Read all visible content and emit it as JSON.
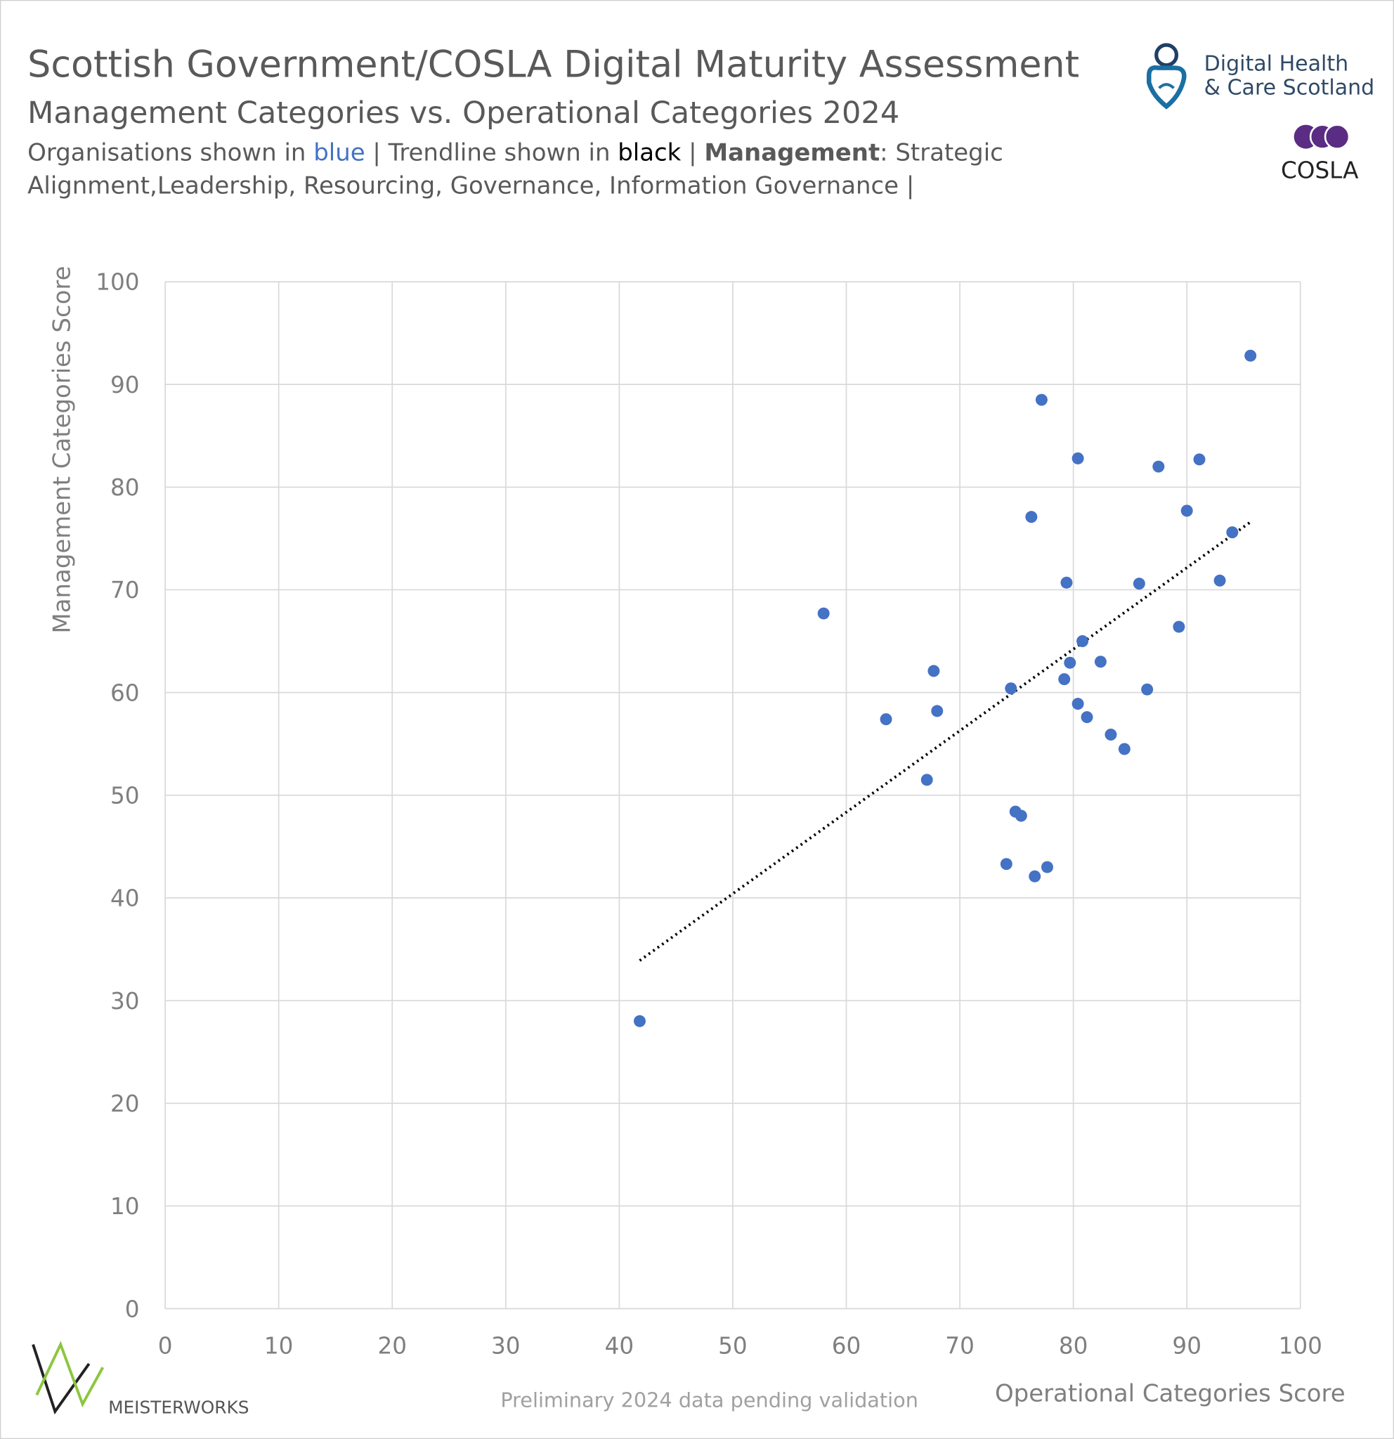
{
  "chart_data": {
    "type": "scatter",
    "title": "Scottish Government/COSLA Digital Maturity Assessment",
    "subtitle": "Management Categories vs. Operational Categories 2024",
    "note_lines": [
      [
        {
          "text": "Organisations shown in ",
          "color": "#595959",
          "bold": false
        },
        {
          "text": "blue",
          "color": "#4472c4",
          "bold": false
        },
        {
          "text": " | Trendline shown in ",
          "color": "#595959",
          "bold": false
        },
        {
          "text": "black",
          "color": "#000000",
          "bold": false
        },
        {
          "text": " | ",
          "color": "#595959",
          "bold": false
        },
        {
          "text": "Management",
          "color": "#595959",
          "bold": true
        },
        {
          "text": ": Strategic",
          "color": "#595959",
          "bold": false
        }
      ],
      [
        {
          "text": "Alignment,Leadership, Resourcing, Governance, Information Governance |",
          "color": "#595959",
          "bold": false
        }
      ]
    ],
    "x_label": "Operational Categories Score",
    "y_label": "Management Categories Score",
    "footnote": "Preliminary 2024 data pending validation",
    "logo_dhcs": [
      "Digital Health",
      "& Care Scotland"
    ],
    "logo_cosla": "COSLA",
    "logo_meisterworks": "MEISTERWORKS",
    "xlim": [
      0,
      100
    ],
    "ylim": [
      0,
      100
    ],
    "xticks": [
      0,
      10,
      20,
      30,
      40,
      50,
      60,
      70,
      80,
      90,
      100
    ],
    "yticks": [
      0,
      10,
      20,
      30,
      40,
      50,
      60,
      70,
      80,
      90,
      100
    ],
    "grid": true,
    "series": [
      {
        "color": "#4472c4",
        "x": [
          95.6,
          77.2,
          80.4,
          87.5,
          91.1,
          76.3,
          90.0,
          94.0,
          79.4,
          85.8,
          92.9,
          58.0,
          89.3,
          80.8,
          79.7,
          82.4,
          67.7,
          79.2,
          74.5,
          86.5,
          80.4,
          68.0,
          63.5,
          81.2,
          83.3,
          84.5,
          67.1,
          74.9,
          75.4,
          74.1,
          77.7,
          76.6,
          41.8
        ],
        "values": [
          92.8,
          88.5,
          82.8,
          82.0,
          82.7,
          77.1,
          77.7,
          75.6,
          70.7,
          70.6,
          70.9,
          67.7,
          66.4,
          65.0,
          62.9,
          63.0,
          62.1,
          61.3,
          60.4,
          60.3,
          58.9,
          58.2,
          57.4,
          57.6,
          55.9,
          54.5,
          51.5,
          48.4,
          48.0,
          43.3,
          43.0,
          42.1,
          28.0
        ]
      }
    ],
    "trendline": {
      "color": "#000000",
      "x": [
        41.8,
        95.6
      ],
      "values": [
        33.9,
        76.6
      ]
    }
  }
}
